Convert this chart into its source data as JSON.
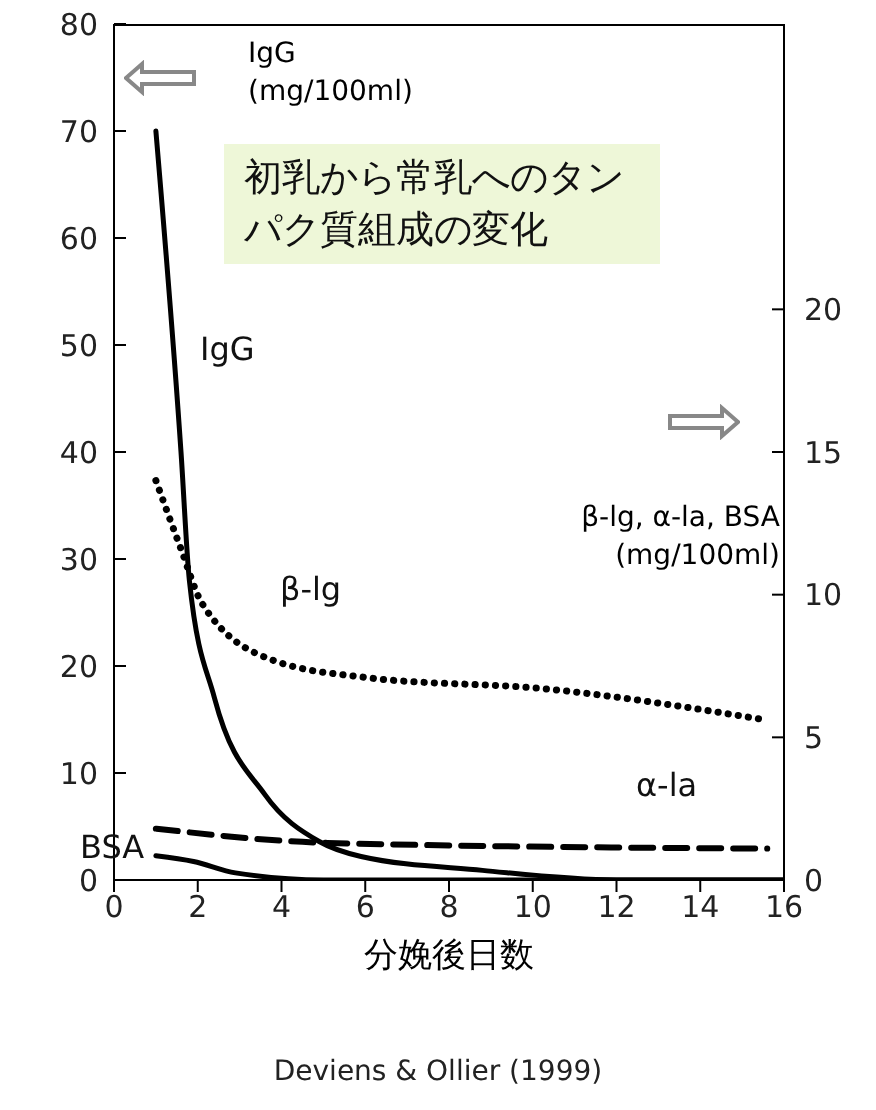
{
  "chart_data": {
    "type": "line",
    "title": "初乳から常乳へのタンパク質組成の変化",
    "xlabel": "分娩後日数",
    "ylabel": "IgG\n(mg/100ml)",
    "y2label": "β-lg, α-la, BSA\n(mg/100ml)",
    "annotations": [
      "Deviens & Ollier (1999)"
    ],
    "xlim": [
      0,
      16
    ],
    "xticks": [
      0,
      2,
      4,
      6,
      8,
      10,
      12,
      14,
      16
    ],
    "ylim": [
      0,
      80
    ],
    "yticks": [
      0,
      10,
      20,
      30,
      40,
      50,
      60,
      70,
      80
    ],
    "y2lim": [
      0,
      30
    ],
    "y2ticks": [
      0,
      5,
      10,
      15,
      20
    ],
    "marker": "none",
    "series": [
      {
        "name": "IgG",
        "color": "#000000",
        "line_style": "solid",
        "x": [
          1,
          1.6,
          1.8,
          2.4,
          3.6,
          4.9,
          5.9,
          8.8,
          12,
          16
        ],
        "values": [
          70,
          40,
          28,
          17,
          8,
          3.6,
          2.2,
          0.9,
          0,
          0
        ]
      },
      {
        "name": "β-lg",
        "color": "#000000",
        "line_style": "dotted",
        "axis": "y2",
        "x": [
          1,
          1.6,
          2.1,
          3.8,
          6,
          10.3,
          15.6
        ],
        "values": [
          14,
          11.6,
          9.7,
          7.7,
          7.1,
          6.7,
          5.6
        ]
      },
      {
        "name": "α-la",
        "color": "#000000",
        "line_style": "dashed",
        "axis": "y2",
        "x": [
          1,
          5.1,
          15.6
        ],
        "values": [
          1.8,
          1.3,
          1.1
        ]
      },
      {
        "name": "BSA",
        "color": "#000000",
        "line_style": "solid",
        "axis": "y2",
        "x": [
          1,
          1.9,
          2.9,
          5,
          16
        ],
        "values": [
          0.85,
          0.65,
          0.25,
          0,
          0
        ]
      }
    ]
  }
}
